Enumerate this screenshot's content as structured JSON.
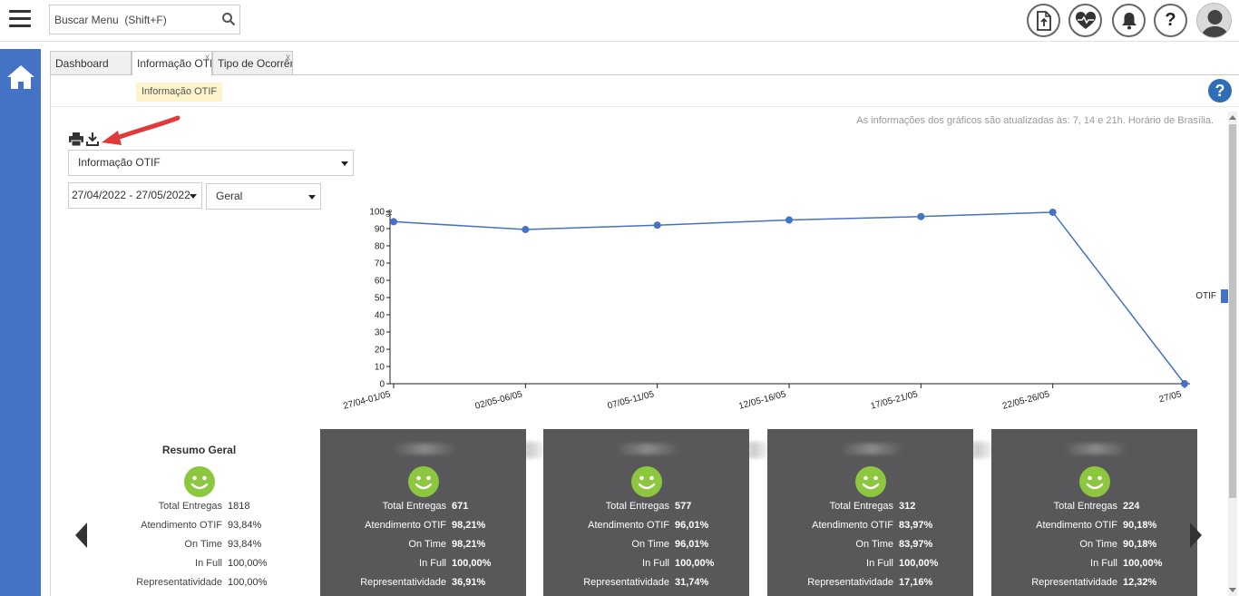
{
  "search": {
    "placeholder": "Buscar Menu  (Shift+F)"
  },
  "header": {
    "icons": [
      "upload-file-icon",
      "heart-pulse-icon",
      "bell-icon",
      "question-icon",
      "user-avatar-icon"
    ]
  },
  "tabs": [
    {
      "label": "Dashboard",
      "active": false,
      "close": ""
    },
    {
      "label": "Informação OTIF",
      "active": true,
      "close": "x"
    },
    {
      "label": "Tipo de Ocorrência",
      "active": false,
      "close": "x"
    }
  ],
  "breadcrumb": "Informação OTIF",
  "update_note": "As informações dos gráficos são atualizadas às: 7, 14 e 21h. Horário de Brasília.",
  "filters": {
    "report": "Informação OTIF",
    "date_range": "27/04/2022 - 27/05/2022",
    "scope": "Geral"
  },
  "chart_data": {
    "type": "line",
    "categories": [
      "27/04-01/05",
      "02/05-06/05",
      "07/05-11/05",
      "12/05-16/05",
      "17/05-21/05",
      "22/05-26/05",
      "27/05"
    ],
    "series": [
      {
        "name": "OTIF",
        "values": [
          94,
          89.5,
          92,
          95,
          97,
          99.5,
          0
        ],
        "color": "#4472c4"
      }
    ],
    "ylabel": "%",
    "ylim": [
      0,
      100
    ],
    "yticks": [
      0,
      10,
      20,
      30,
      40,
      50,
      60,
      70,
      80,
      90,
      100
    ],
    "legend": "top-right"
  },
  "summary_general": {
    "title": "Resumo Geral",
    "rows": [
      {
        "label": "Total Entregas",
        "value": "1818"
      },
      {
        "label": "Atendimento OTIF",
        "value": "93,84%"
      },
      {
        "label": "On Time",
        "value": "93,84%"
      },
      {
        "label": "In Full",
        "value": "100,00%"
      },
      {
        "label": "Representatividade",
        "value": "100,00%"
      }
    ]
  },
  "cards": [
    {
      "rows": [
        {
          "label": "Total Entregas",
          "value": "671"
        },
        {
          "label": "Atendimento OTIF",
          "value": "98,21%"
        },
        {
          "label": "On Time",
          "value": "98,21%"
        },
        {
          "label": "In Full",
          "value": "100,00%"
        },
        {
          "label": "Representatividade",
          "value": "36,91%"
        }
      ]
    },
    {
      "rows": [
        {
          "label": "Total Entregas",
          "value": "577"
        },
        {
          "label": "Atendimento OTIF",
          "value": "96,01%"
        },
        {
          "label": "On Time",
          "value": "96,01%"
        },
        {
          "label": "In Full",
          "value": "100,00%"
        },
        {
          "label": "Representatividade",
          "value": "31,74%"
        }
      ]
    },
    {
      "rows": [
        {
          "label": "Total Entregas",
          "value": "312"
        },
        {
          "label": "Atendimento OTIF",
          "value": "83,97%"
        },
        {
          "label": "On Time",
          "value": "83,97%"
        },
        {
          "label": "In Full",
          "value": "100,00%"
        },
        {
          "label": "Representatividade",
          "value": "17,16%"
        }
      ]
    },
    {
      "rows": [
        {
          "label": "Total Entregas",
          "value": "224"
        },
        {
          "label": "Atendimento OTIF",
          "value": "90,18%"
        },
        {
          "label": "On Time",
          "value": "90,18%"
        },
        {
          "label": "In Full",
          "value": "100,00%"
        },
        {
          "label": "Representatividade",
          "value": "12,32%"
        }
      ]
    }
  ],
  "colors": {
    "accent": "#4472c4",
    "card_bg": "#58585a",
    "smile": "#8dc63f",
    "help": "#2f6db5",
    "annotation_arrow": "#e03a3a"
  }
}
